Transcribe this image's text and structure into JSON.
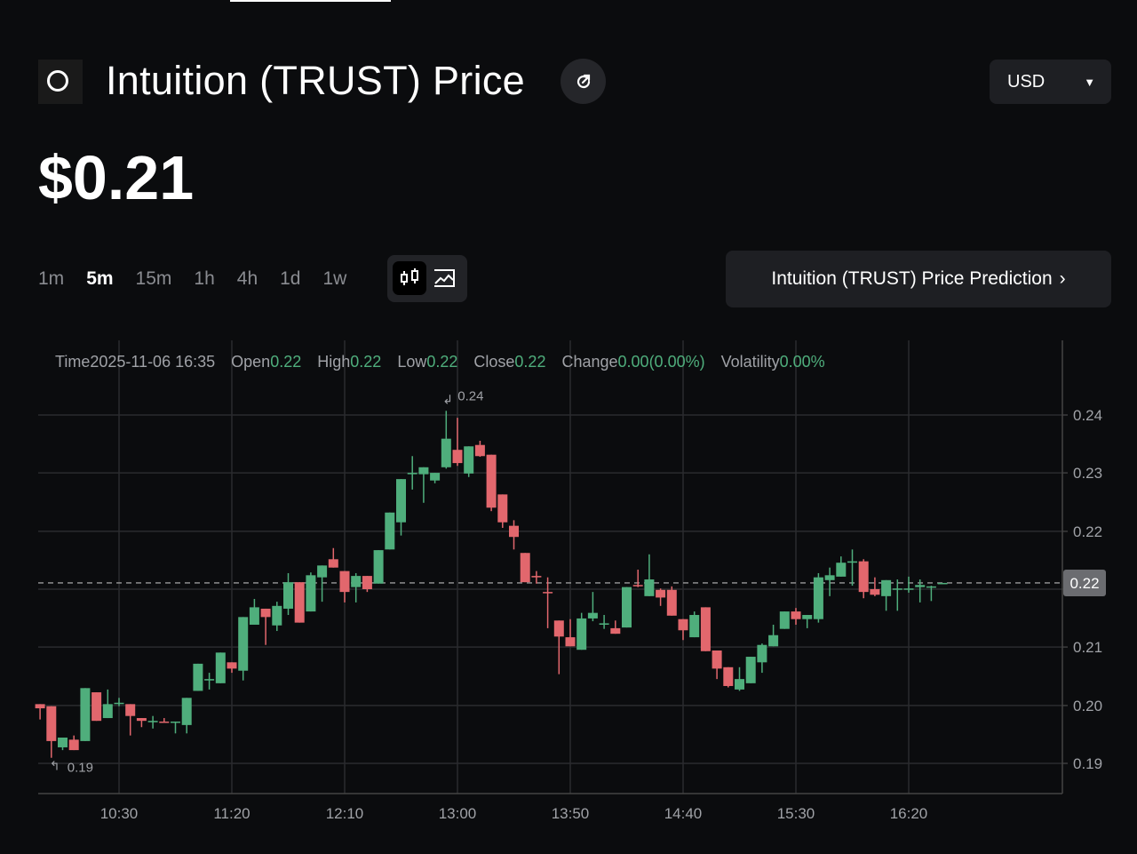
{
  "header": {
    "title": "Intuition (TRUST) Price",
    "price": "$0.21",
    "currency": "USD",
    "logo_icon": "intuition-logo",
    "share_icon": "share-icon"
  },
  "intervals": [
    {
      "label": "1m"
    },
    {
      "label": "5m",
      "active": true
    },
    {
      "label": "15m"
    },
    {
      "label": "1h"
    },
    {
      "label": "4h"
    },
    {
      "label": "1d"
    },
    {
      "label": "1w"
    }
  ],
  "chart_types": {
    "selected": "candlestick",
    "options": [
      "candlestick-icon",
      "line-chart-icon"
    ]
  },
  "prediction_button": "Intuition (TRUST) Price Prediction",
  "stats": {
    "time_label": "Time",
    "time": "2025-11-06 16:35",
    "open_label": "Open",
    "open": "0.22",
    "high_label": "High",
    "high": "0.22",
    "low_label": "Low",
    "low": "0.22",
    "close_label": "Close",
    "close": "0.22",
    "change_label": "Change",
    "change": "0.00(0.00%)",
    "volatility_label": "Volatility",
    "volatility": "0.00%"
  },
  "colors": {
    "up": "#4fae7c",
    "down": "#e2676d",
    "background": "#0b0c0e",
    "grid": "#2a2b2e"
  },
  "chart_data": {
    "type": "candlestick",
    "interval": "5m",
    "start_time": "09:55",
    "x_ticks": [
      "10:30",
      "11:20",
      "12:10",
      "13:00",
      "13:50",
      "14:40",
      "15:30",
      "16:20"
    ],
    "y_ticks": [
      {
        "label": "0.24",
        "value": 0.24
      },
      {
        "label": "0.23",
        "value": 0.2317
      },
      {
        "label": "0.22",
        "value": 0.2233
      },
      {
        "label": "",
        "value": 0.215
      },
      {
        "label": "0.21",
        "value": 0.2067
      },
      {
        "label": "0.20",
        "value": 0.1983
      },
      {
        "label": "0.19",
        "value": 0.19
      }
    ],
    "ylim": [
      0.19,
      0.24
    ],
    "grid": true,
    "current_price": {
      "label": "0.22",
      "value": 0.2159
    },
    "max_marker": {
      "label": "0.24",
      "value": 0.2406,
      "index": 36
    },
    "min_marker": {
      "label": "0.19",
      "value": 0.1908,
      "index": 1
    },
    "ohlc": [
      [
        0.1985,
        0.1985,
        0.1963,
        0.1979
      ],
      [
        0.1982,
        0.1982,
        0.1908,
        0.1932
      ],
      [
        0.1923,
        0.1937,
        0.1919,
        0.1937
      ],
      [
        0.1934,
        0.194,
        0.1919,
        0.1919
      ],
      [
        0.1932,
        0.2008,
        0.1932,
        0.2008
      ],
      [
        0.2002,
        0.2002,
        0.1961,
        0.1961
      ],
      [
        0.1965,
        0.2006,
        0.1965,
        0.1985
      ],
      [
        0.1987,
        0.1994,
        0.1982,
        0.1987
      ],
      [
        0.1985,
        0.1985,
        0.194,
        0.1968
      ],
      [
        0.1965,
        0.1965,
        0.1952,
        0.1961
      ],
      [
        0.1959,
        0.1968,
        0.195,
        0.1961
      ],
      [
        0.196,
        0.1965,
        0.1959,
        0.1959
      ],
      [
        0.1959,
        0.196,
        0.1943,
        0.196
      ],
      [
        0.1955,
        0.1994,
        0.1943,
        0.1994
      ],
      [
        0.2004,
        0.2043,
        0.2004,
        0.2043
      ],
      [
        0.2019,
        0.203,
        0.2006,
        0.2021
      ],
      [
        0.2015,
        0.2059,
        0.2015,
        0.2059
      ],
      [
        0.2045,
        0.2045,
        0.203,
        0.2036
      ],
      [
        0.2033,
        0.211,
        0.2019,
        0.211
      ],
      [
        0.2099,
        0.2136,
        0.2099,
        0.2124
      ],
      [
        0.2122,
        0.2122,
        0.207,
        0.211
      ],
      [
        0.2098,
        0.2132,
        0.209,
        0.2126
      ],
      [
        0.2122,
        0.2173,
        0.2113,
        0.216
      ],
      [
        0.216,
        0.216,
        0.2102,
        0.2102
      ],
      [
        0.2118,
        0.2174,
        0.2118,
        0.217
      ],
      [
        0.2167,
        0.2184,
        0.2132,
        0.2184
      ],
      [
        0.2193,
        0.2209,
        0.2181,
        0.2181
      ],
      [
        0.2176,
        0.2176,
        0.2131,
        0.2146
      ],
      [
        0.2153,
        0.2173,
        0.2131,
        0.2169
      ],
      [
        0.2169,
        0.2169,
        0.2146,
        0.215
      ],
      [
        0.2158,
        0.2206,
        0.2158,
        0.2206
      ],
      [
        0.2207,
        0.226,
        0.2207,
        0.226
      ],
      [
        0.2246,
        0.2308,
        0.2227,
        0.2308
      ],
      [
        0.2315,
        0.2341,
        0.2293,
        0.2317
      ],
      [
        0.2315,
        0.2325,
        0.2274,
        0.2325
      ],
      [
        0.2306,
        0.2317,
        0.2302,
        0.2317
      ],
      [
        0.2325,
        0.2406,
        0.2323,
        0.2366
      ],
      [
        0.235,
        0.2396,
        0.2327,
        0.2331
      ],
      [
        0.2316,
        0.2355,
        0.2311,
        0.2355
      ],
      [
        0.2357,
        0.2363,
        0.234,
        0.2341
      ],
      [
        0.2343,
        0.2343,
        0.2262,
        0.2267
      ],
      [
        0.2286,
        0.2286,
        0.2238,
        0.2246
      ],
      [
        0.2241,
        0.2249,
        0.2207,
        0.2225
      ],
      [
        0.2202,
        0.2202,
        0.216,
        0.216
      ],
      [
        0.2169,
        0.2176,
        0.2158,
        0.2167
      ],
      [
        0.2146,
        0.2167,
        0.2094,
        0.2145
      ],
      [
        0.2105,
        0.2105,
        0.2028,
        0.2082
      ],
      [
        0.2081,
        0.2107,
        0.2068,
        0.2068
      ],
      [
        0.2063,
        0.2116,
        0.2063,
        0.2108
      ],
      [
        0.2108,
        0.2146,
        0.2104,
        0.2116
      ],
      [
        0.2099,
        0.2113,
        0.2093,
        0.2101
      ],
      [
        0.2094,
        0.2105,
        0.2086,
        0.2086
      ],
      [
        0.2095,
        0.2153,
        0.2095,
        0.2153
      ],
      [
        0.2156,
        0.2178,
        0.2153,
        0.2155
      ],
      [
        0.214,
        0.22,
        0.214,
        0.2164
      ],
      [
        0.2149,
        0.2151,
        0.2126,
        0.2138
      ],
      [
        0.2149,
        0.2154,
        0.2112,
        0.2112
      ],
      [
        0.2107,
        0.2107,
        0.2077,
        0.2091
      ],
      [
        0.2081,
        0.2118,
        0.2081,
        0.2113
      ],
      [
        0.2124,
        0.2124,
        0.2061,
        0.2061
      ],
      [
        0.2062,
        0.2062,
        0.2021,
        0.2036
      ],
      [
        0.2038,
        0.2038,
        0.2009,
        0.2011
      ],
      [
        0.2006,
        0.2038,
        0.2004,
        0.2021
      ],
      [
        0.2015,
        0.2053,
        0.2015,
        0.2053
      ],
      [
        0.2045,
        0.2072,
        0.203,
        0.207
      ],
      [
        0.2068,
        0.2099,
        0.2068,
        0.2084
      ],
      [
        0.2093,
        0.2118,
        0.2093,
        0.2118
      ],
      [
        0.2118,
        0.2123,
        0.2099,
        0.2107
      ],
      [
        0.2107,
        0.2113,
        0.2094,
        0.2113
      ],
      [
        0.2107,
        0.2173,
        0.2102,
        0.2167
      ],
      [
        0.2163,
        0.2181,
        0.214,
        0.217
      ],
      [
        0.2168,
        0.2197,
        0.2168,
        0.2188
      ],
      [
        0.2188,
        0.2207,
        0.2155,
        0.219
      ],
      [
        0.219,
        0.2193,
        0.2137,
        0.2146
      ],
      [
        0.215,
        0.2167,
        0.214,
        0.2142
      ],
      [
        0.214,
        0.2163,
        0.2119,
        0.2163
      ],
      [
        0.215,
        0.2164,
        0.2119,
        0.2151
      ],
      [
        0.215,
        0.2168,
        0.2145,
        0.2151
      ],
      [
        0.2153,
        0.2164,
        0.2131,
        0.2156
      ],
      [
        0.2153,
        0.2155,
        0.2133,
        0.2154
      ],
      [
        0.2158,
        0.2159,
        0.2158,
        0.2159
      ]
    ]
  }
}
